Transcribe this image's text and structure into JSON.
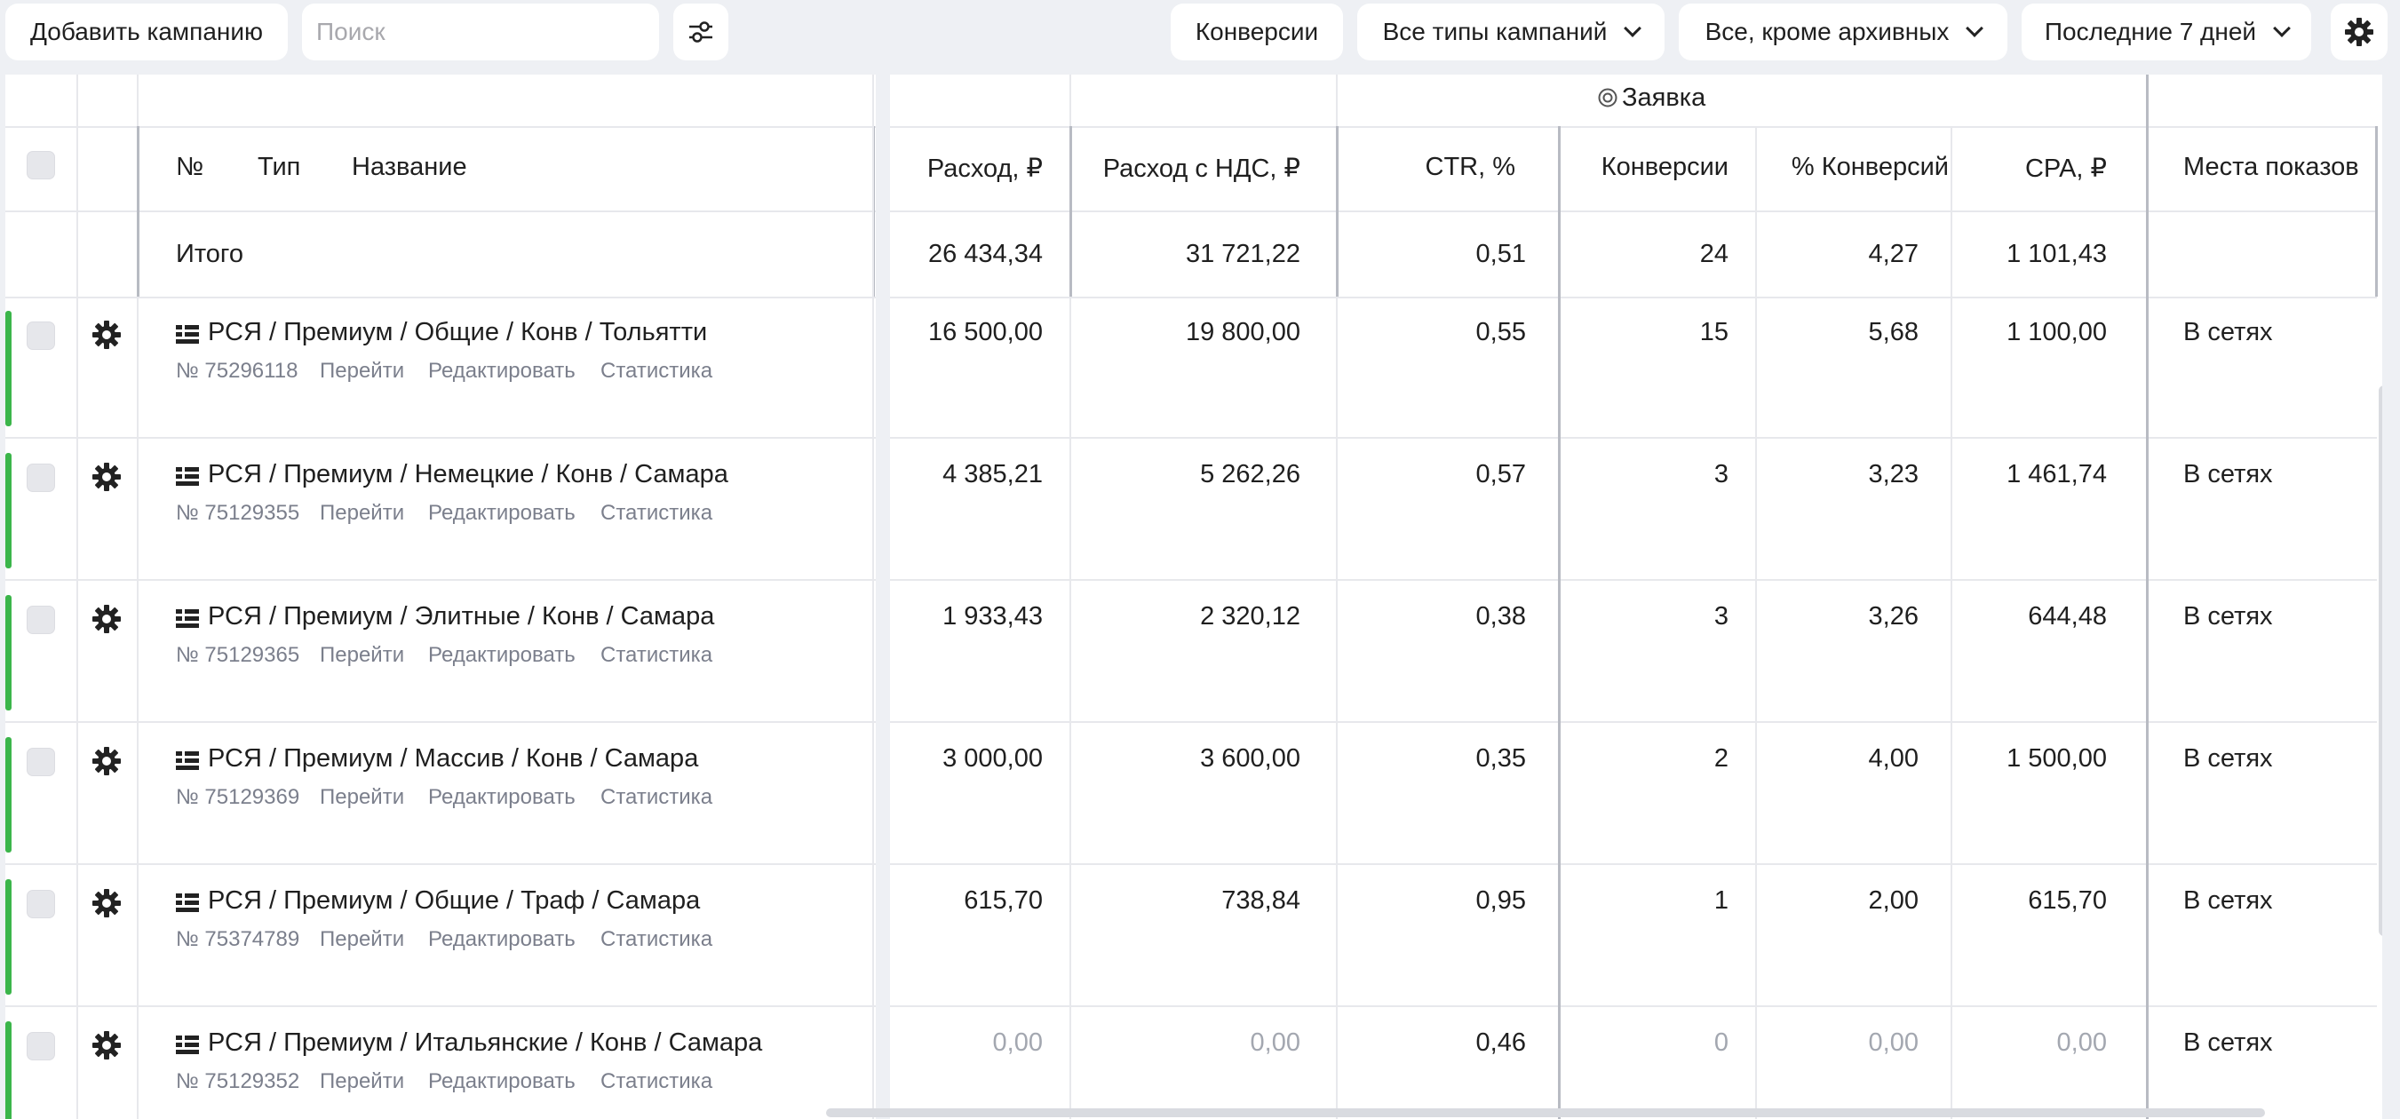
{
  "toolbar": {
    "add_campaign": "Добавить кампанию",
    "search_placeholder": "Поиск",
    "filter_icon": "sliders-icon",
    "conversions": "Конверсии",
    "campaign_types": "Все типы кампаний",
    "archive_filter": "Все, кроме архивных",
    "period": "Последние 7 дней",
    "settings_icon": "gear-icon"
  },
  "table": {
    "goal_label": "Заявка",
    "headers": {
      "num": "№",
      "type": "Тип",
      "name": "Название",
      "spend": "Расход, ₽",
      "spend_vat": "Расход с НДС, ₽",
      "ctr": "CTR, %",
      "conversions": "Конверсии",
      "conv_rate": "% Конверсий",
      "cpa": "CPA, ₽",
      "placement": "Места показов"
    },
    "total": {
      "label": "Итого",
      "spend": "26 434,34",
      "spend_vat": "31 721,22",
      "ctr": "0,51",
      "conversions": "24",
      "conv_rate": "4,27",
      "cpa": "1 101,43"
    },
    "link_go": "Перейти",
    "link_edit": "Редактировать",
    "link_stats": "Статистика",
    "rows": [
      {
        "name": "РСЯ / Премиум / Общие / Конв / Тольятти",
        "id": "№ 75296118",
        "spend": "16 500,00",
        "spend_vat": "19 800,00",
        "ctr": "0,55",
        "conversions": "15",
        "conv_rate": "5,68",
        "cpa": "1 100,00",
        "placement": "В сетях"
      },
      {
        "name": "РСЯ / Премиум / Немецкие / Конв / Самара",
        "id": "№ 75129355",
        "spend": "4 385,21",
        "spend_vat": "5 262,26",
        "ctr": "0,57",
        "conversions": "3",
        "conv_rate": "3,23",
        "cpa": "1 461,74",
        "placement": "В сетях"
      },
      {
        "name": "РСЯ / Премиум / Элитные / Конв / Самара",
        "id": "№ 75129365",
        "spend": "1 933,43",
        "spend_vat": "2 320,12",
        "ctr": "0,38",
        "conversions": "3",
        "conv_rate": "3,26",
        "cpa": "644,48",
        "placement": "В сетях"
      },
      {
        "name": "РСЯ / Премиум / Массив / Конв / Самара",
        "id": "№ 75129369",
        "spend": "3 000,00",
        "spend_vat": "3 600,00",
        "ctr": "0,35",
        "conversions": "2",
        "conv_rate": "4,00",
        "cpa": "1 500,00",
        "placement": "В сетях"
      },
      {
        "name": "РСЯ / Премиум / Общие / Траф / Самара",
        "id": "№ 75374789",
        "spend": "615,70",
        "spend_vat": "738,84",
        "ctr": "0,95",
        "conversions": "1",
        "conv_rate": "2,00",
        "cpa": "615,70",
        "placement": "В сетях"
      },
      {
        "name": "РСЯ / Премиум / Итальянские / Конв / Самара",
        "id": "№ 75129352",
        "spend": "0,00",
        "spend_vat": "0,00",
        "ctr": "0,46",
        "conversions": "0",
        "conv_rate": "0,00",
        "cpa": "0,00",
        "placement": "В сетях",
        "muted": true
      }
    ]
  },
  "colors": {
    "active_status": "#3bb54a",
    "muted_text": "#a3a7b0"
  }
}
